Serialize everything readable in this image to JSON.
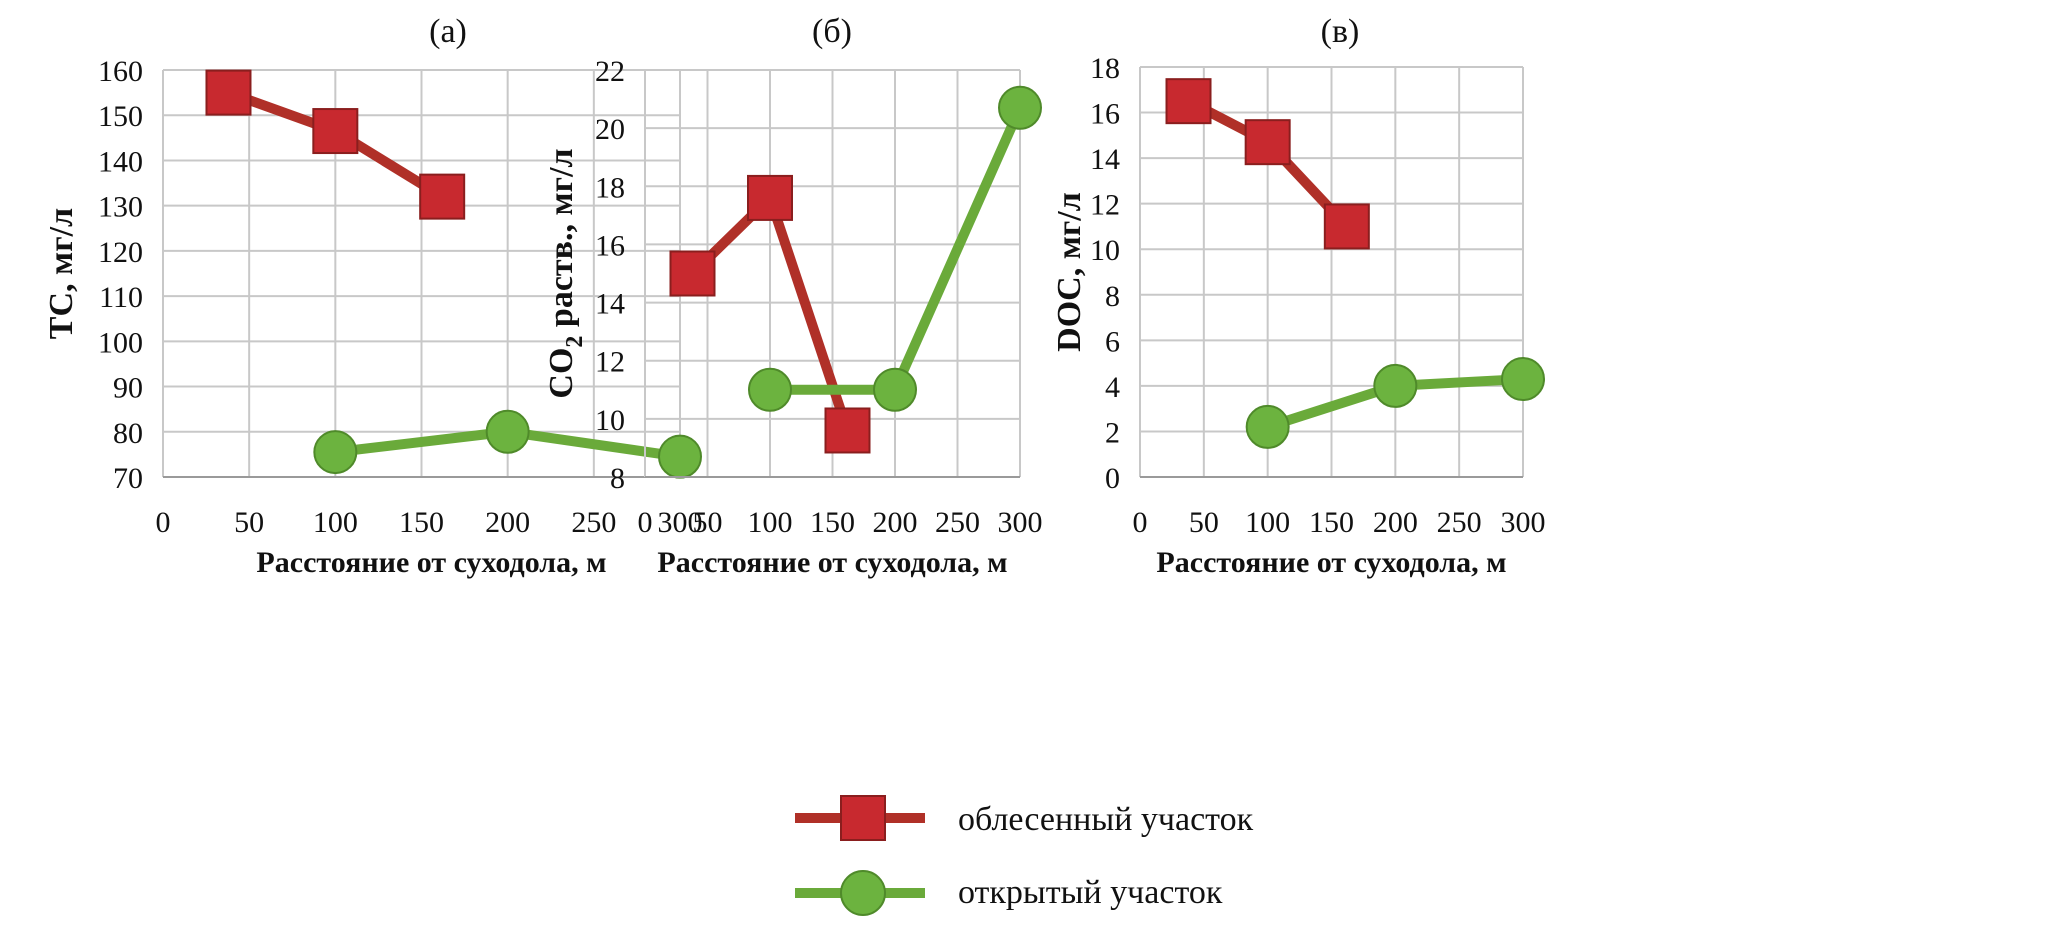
{
  "legend": {
    "placement": "bottom-center",
    "items": [
      {
        "label": "облесенный участок",
        "series": 0
      },
      {
        "label": "открытый участок",
        "series": 1
      }
    ]
  },
  "styles": {
    "series_colors": [
      "#b03028",
      "#6aaa3a"
    ],
    "marker_fill": [
      "#c8292f",
      "#6cb33f"
    ],
    "grid_color": "#c8c8c8"
  },
  "chart_data": [
    {
      "type": "line",
      "title": "(a)",
      "xlabel": "Расстояние от суходола, м",
      "ylabel": "TC, мг/л",
      "xlim": [
        0,
        300
      ],
      "ylim": [
        70,
        160
      ],
      "xticks": [
        0,
        50,
        100,
        150,
        200,
        250,
        300
      ],
      "yticks": [
        70,
        80,
        90,
        100,
        110,
        120,
        130,
        140,
        150,
        160
      ],
      "grid": true,
      "series": [
        {
          "name": "облесенный участок",
          "marker": "square",
          "x": [
            38,
            100,
            162
          ],
          "y": [
            155,
            146.5,
            132
          ]
        },
        {
          "name": "открытый участок",
          "marker": "circle",
          "x": [
            100,
            200,
            300
          ],
          "y": [
            75.5,
            80,
            74.5
          ]
        }
      ]
    },
    {
      "type": "line",
      "title": "(б)",
      "xlabel": "Расстояние от суходола, м",
      "ylabel_main": "CO",
      "ylabel_sub": "2",
      "ylabel_rest": " раств., мг/л",
      "xlim": [
        0,
        300
      ],
      "ylim": [
        8,
        22
      ],
      "xticks": [
        0,
        50,
        100,
        150,
        200,
        250,
        300
      ],
      "yticks": [
        8,
        10,
        12,
        14,
        16,
        18,
        20,
        22
      ],
      "grid": true,
      "series": [
        {
          "name": "облесенный участок",
          "marker": "square",
          "x": [
            38,
            100,
            162
          ],
          "y": [
            15,
            17.6,
            9.6
          ]
        },
        {
          "name": "открытый участок",
          "marker": "circle",
          "x": [
            100,
            200,
            300
          ],
          "y": [
            11,
            11,
            20.7
          ]
        }
      ]
    },
    {
      "type": "line",
      "title": "(в)",
      "xlabel": "Расстояние от суходола, м",
      "ylabel": "DOC, мг/л",
      "xlim": [
        0,
        300
      ],
      "ylim": [
        0,
        18
      ],
      "xticks": [
        0,
        50,
        100,
        150,
        200,
        250,
        300
      ],
      "yticks": [
        0,
        2,
        4,
        6,
        8,
        10,
        12,
        14,
        16,
        18
      ],
      "grid": true,
      "series": [
        {
          "name": "облесенный участок",
          "marker": "square",
          "x": [
            38,
            100,
            162
          ],
          "y": [
            16.5,
            14.7,
            11
          ]
        },
        {
          "name": "открытый участок",
          "marker": "circle",
          "x": [
            100,
            200,
            300
          ],
          "y": [
            2.2,
            4,
            4.3
          ]
        }
      ]
    }
  ]
}
